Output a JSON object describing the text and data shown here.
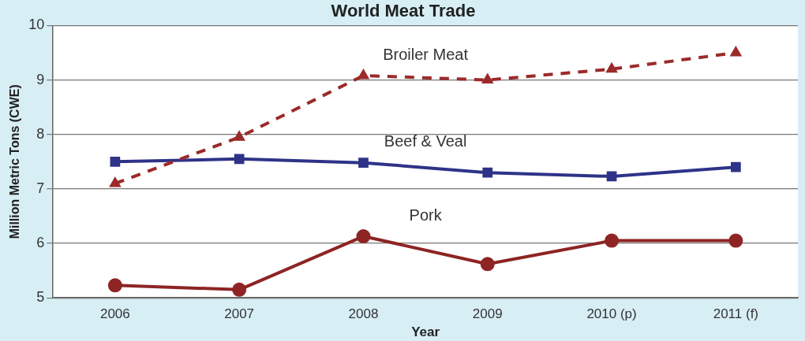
{
  "chart_data": {
    "type": "line",
    "title": "World Meat Trade",
    "xlabel": "Year",
    "ylabel": "Million Metric Tons (CWE)",
    "categories": [
      "2006",
      "2007",
      "2008",
      "2009",
      "2010 (p)",
      "2011 (f)"
    ],
    "series": [
      {
        "name": "Broiler Meat",
        "color": "#9b2a2a",
        "marker": "triangle",
        "line_style": "dashed",
        "values": [
          7.1,
          7.95,
          9.08,
          9.0,
          9.2,
          9.5
        ]
      },
      {
        "name": "Beef & Veal",
        "color": "#2e3388",
        "marker": "square",
        "line_style": "solid",
        "values": [
          7.5,
          7.55,
          7.48,
          7.3,
          7.23,
          7.4
        ]
      },
      {
        "name": "Pork",
        "color": "#8e2424",
        "marker": "circle",
        "line_style": "solid",
        "values": [
          5.23,
          5.15,
          6.13,
          5.62,
          6.05,
          6.05
        ]
      }
    ],
    "ylim": [
      5,
      10
    ],
    "yticks": [
      5,
      6,
      7,
      8,
      9,
      10
    ],
    "grid": "y",
    "legend": false
  }
}
